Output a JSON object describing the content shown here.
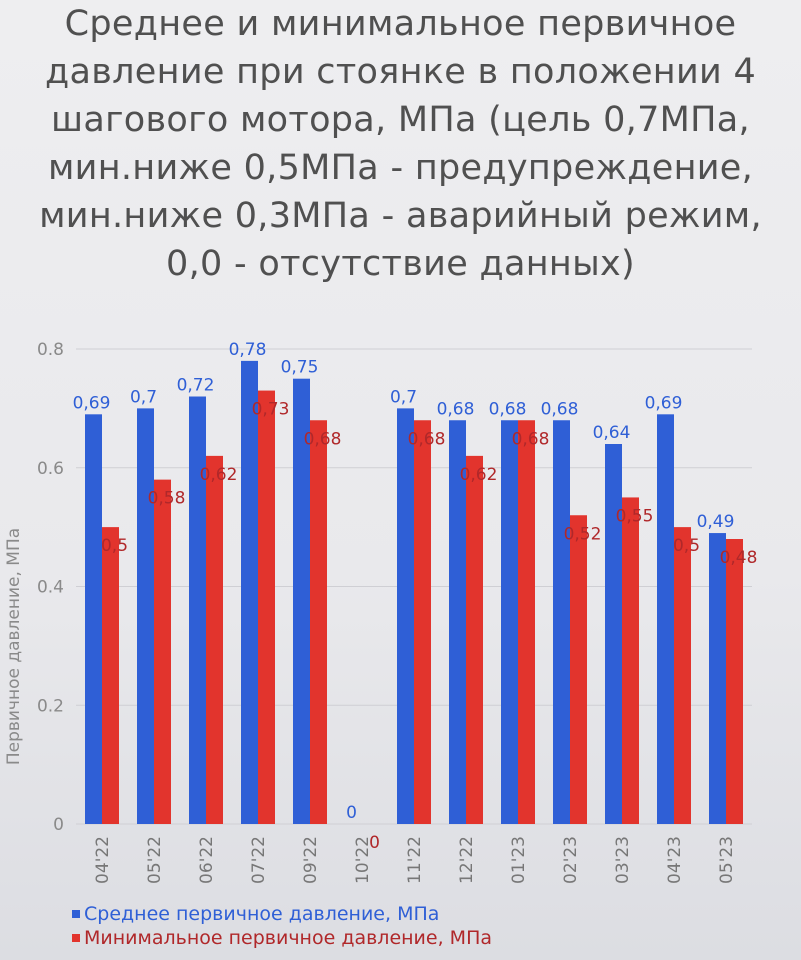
{
  "title_lines": [
    "Среднее и минимальное первичное",
    "давление при стоянке в положении 4",
    "шагового мотора, МПа (цель 0,7МПа,",
    "мин.ниже 0,5МПа - предупреждение,",
    "мин.ниже 0,3МПа - аварийный режим,",
    "0,0 - отсутствие данных)"
  ],
  "chart_data": {
    "type": "bar",
    "title": "Среднее и минимальное первичное давление при стоянке в положении 4 шагового мотора, МПа (цель 0,7МПа, мин.ниже 0,5МПа - предупреждение, мин.ниже 0,3МПа - аварийный режим, 0,0 - отсутствие данных)",
    "categories": [
      "04'22",
      "05'22",
      "06'22",
      "07'22",
      "09'22",
      "10'22",
      "11'22",
      "12'22",
      "01'23",
      "02'23",
      "03'23",
      "04'23",
      "05'23"
    ],
    "series": [
      {
        "name": "Среднее первичное давление, МПа",
        "color": "#2f5fd6",
        "label_color": "#2f5fd6",
        "values": [
          0.69,
          0.7,
          0.72,
          0.78,
          0.75,
          0,
          0.7,
          0.68,
          0.68,
          0.68,
          0.64,
          0.69,
          0.49
        ],
        "labels": [
          "0,69",
          "0,7",
          "0,72",
          "0,78",
          "0,75",
          "0",
          "0,7",
          "0,68",
          "0,68",
          "0,68",
          "0,64",
          "0,69",
          "0,49"
        ]
      },
      {
        "name": "Минимальное первичное давление, МПа",
        "color": "#e2342d",
        "label_color": "#b0282a",
        "values": [
          0.5,
          0.58,
          0.62,
          0.73,
          0.68,
          0,
          0.68,
          0.62,
          0.68,
          0.52,
          0.55,
          0.5,
          0.48
        ],
        "labels": [
          "0,5",
          "0,58",
          "0,62",
          "0,73",
          "0,68",
          "0",
          "0,68",
          "0,62",
          "0,68",
          "0,52",
          "0,55",
          "0,5",
          "0,48"
        ]
      }
    ],
    "ylabel": "Первичное давление, МПа",
    "xlabel": "",
    "ylim": [
      0,
      0.8
    ],
    "yticks": [
      "0",
      "0.2",
      "0.4",
      "0.6",
      "0.8"
    ],
    "grid": true,
    "legend_position": "bottom-left"
  }
}
